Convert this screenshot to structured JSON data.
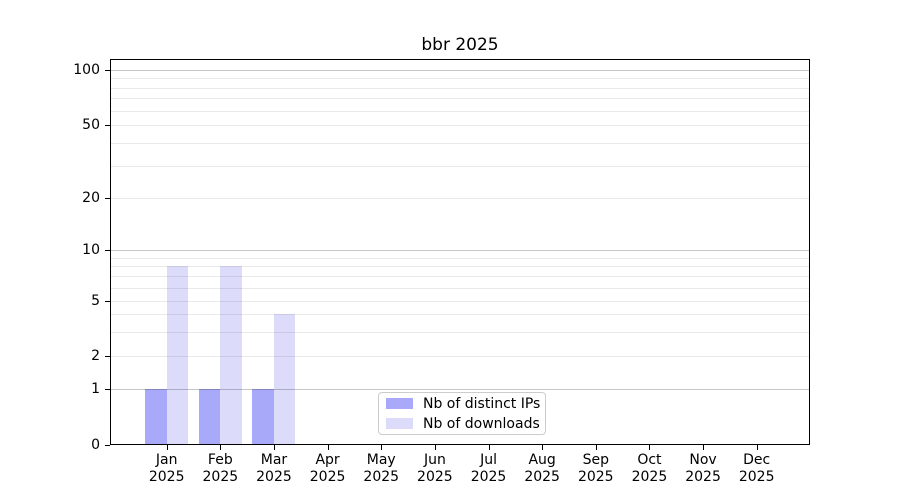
{
  "chart_data": {
    "type": "bar",
    "title": "bbr 2025",
    "categories": [
      {
        "label": "Jan",
        "sublabel": "2025"
      },
      {
        "label": "Feb",
        "sublabel": "2025"
      },
      {
        "label": "Mar",
        "sublabel": "2025"
      },
      {
        "label": "Apr",
        "sublabel": "2025"
      },
      {
        "label": "May",
        "sublabel": "2025"
      },
      {
        "label": "Jun",
        "sublabel": "2025"
      },
      {
        "label": "Jul",
        "sublabel": "2025"
      },
      {
        "label": "Aug",
        "sublabel": "2025"
      },
      {
        "label": "Sep",
        "sublabel": "2025"
      },
      {
        "label": "Oct",
        "sublabel": "2025"
      },
      {
        "label": "Nov",
        "sublabel": "2025"
      },
      {
        "label": "Dec",
        "sublabel": "2025"
      }
    ],
    "series": [
      {
        "name": "Nb of distinct IPs",
        "color": "#a9a9fa",
        "values": [
          1,
          1,
          1,
          0,
          0,
          0,
          0,
          0,
          0,
          0,
          0,
          0
        ]
      },
      {
        "name": "Nb of downloads",
        "color": "#dcdcfa",
        "values": [
          8,
          8,
          4,
          0,
          0,
          0,
          0,
          0,
          0,
          0,
          0,
          0
        ]
      }
    ],
    "yaxis": {
      "scale": "symlog",
      "tick_labels": [
        100,
        50,
        20,
        10,
        5,
        2,
        1,
        0
      ],
      "ylim": [
        0,
        113
      ]
    },
    "grid": {
      "major": [
        1,
        10,
        100
      ],
      "minor": [
        2,
        3,
        4,
        5,
        6,
        7,
        8,
        9,
        20,
        30,
        40,
        50,
        60,
        70,
        80,
        90
      ]
    },
    "legend": {
      "position": "lower-center"
    }
  }
}
